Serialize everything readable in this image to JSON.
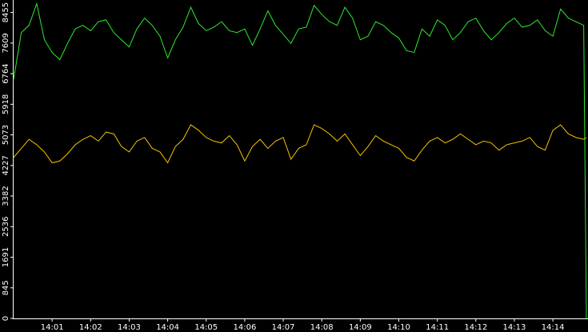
{
  "chart_data": {
    "type": "line",
    "x": [
      0,
      0.2,
      0.4,
      0.6,
      0.8,
      1,
      1.2,
      1.4,
      1.6,
      1.8,
      2,
      2.2,
      2.4,
      2.6,
      2.8,
      3,
      3.2,
      3.4,
      3.6,
      3.8,
      4,
      4.2,
      4.4,
      4.6,
      4.8,
      5,
      5.2,
      5.4,
      5.6,
      5.8,
      6,
      6.2,
      6.4,
      6.6,
      6.8,
      7,
      7.2,
      7.4,
      7.6,
      7.8,
      8,
      8.2,
      8.4,
      8.6,
      8.8,
      9,
      9.2,
      9.4,
      9.6,
      9.8,
      10,
      10.2,
      10.4,
      10.6,
      10.8,
      11,
      11.2,
      11.4,
      11.6,
      11.8,
      12,
      12.2,
      12.4,
      12.6,
      12.8,
      13,
      13.2,
      13.4,
      13.6,
      13.8,
      14,
      14.2,
      14.4,
      14.6,
      14.8,
      14.87
    ],
    "series": [
      {
        "color": "#2ee82e",
        "values": [
          6600,
          7900,
          8100,
          8700,
          7700,
          7350,
          7150,
          7600,
          8000,
          8100,
          7950,
          8200,
          8250,
          7900,
          7700,
          7500,
          8000,
          8300,
          8100,
          7800,
          7200,
          7700,
          8050,
          8600,
          8150,
          7950,
          8050,
          8200,
          7950,
          7900,
          8000,
          7550,
          8000,
          8500,
          8100,
          7850,
          7600,
          8000,
          8050,
          8650,
          8400,
          8200,
          8100,
          8600,
          8300,
          7700,
          7800,
          8200,
          8100,
          7900,
          7750,
          7400,
          7350,
          8000,
          7800,
          8250,
          8100,
          7700,
          7900,
          8200,
          8300,
          7950,
          7700,
          7900,
          8150,
          8300,
          8050,
          8100,
          8250,
          7950,
          7800,
          8550,
          8300,
          8200,
          8100,
          0
        ]
      },
      {
        "color": "#f2c200",
        "values": [
          4450,
          4700,
          4950,
          4800,
          4600,
          4300,
          4350,
          4550,
          4800,
          4950,
          5050,
          4900,
          5150,
          5100,
          4750,
          4600,
          4900,
          5000,
          4700,
          4600,
          4300,
          4750,
          4950,
          5350,
          5200,
          5000,
          4900,
          4850,
          5050,
          4800,
          4350,
          4750,
          4950,
          4700,
          4900,
          5000,
          4400,
          4700,
          4800,
          5350,
          5250,
          5100,
          4900,
          5100,
          4800,
          4500,
          4750,
          5050,
          4900,
          4800,
          4700,
          4450,
          4350,
          4650,
          4900,
          5000,
          4850,
          4950,
          5100,
          4950,
          4800,
          4900,
          4850,
          4650,
          4800,
          4850,
          4900,
          5000,
          4750,
          4650,
          5200,
          5350,
          5100,
          5000,
          4950,
          5000
        ]
      }
    ],
    "xlim": [
      0,
      14.87
    ],
    "xticks": [
      {
        "value": 1,
        "label": "14:01"
      },
      {
        "value": 2,
        "label": "14:02"
      },
      {
        "value": 3,
        "label": "14:03"
      },
      {
        "value": 4,
        "label": "14:04"
      },
      {
        "value": 5,
        "label": "14:05"
      },
      {
        "value": 6,
        "label": "14:06"
      },
      {
        "value": 7,
        "label": "14:07"
      },
      {
        "value": 8,
        "label": "14:08"
      },
      {
        "value": 9,
        "label": "14:09"
      },
      {
        "value": 10,
        "label": "14:10"
      },
      {
        "value": 11,
        "label": "14:11"
      },
      {
        "value": 12,
        "label": "14:12"
      },
      {
        "value": 13,
        "label": "14:13"
      },
      {
        "value": 14,
        "label": "14:14"
      }
    ],
    "ylim": [
      0,
      8800
    ],
    "yticks": [
      0,
      845,
      1691,
      2536,
      3382,
      4227,
      5073,
      5918,
      6764,
      7609,
      8455
    ]
  }
}
